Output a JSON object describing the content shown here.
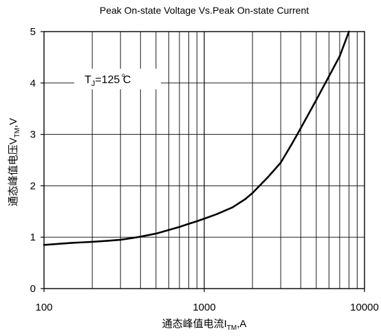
{
  "chart_data": {
    "type": "line",
    "title": "Peak On-state Voltage Vs.Peak On-state Current",
    "xlabel": {
      "main": "通态峰值电流I",
      "sub": "TM",
      "suffix": ",A"
    },
    "ylabel": {
      "main": "通态峰值电压V",
      "sub": "TM",
      "suffix": ",V"
    },
    "xscale": "log",
    "xlim": [
      100,
      10000
    ],
    "ylim": [
      0,
      5
    ],
    "x_ticks": [
      "100",
      "1000",
      "10000"
    ],
    "y_ticks": [
      "0",
      "1",
      "2",
      "3",
      "4",
      "5"
    ],
    "grid": true,
    "annotation": {
      "main": "T",
      "sub": "J",
      "suffix": "=125  C"
    },
    "series": [
      {
        "x": [
          100,
          150,
          200,
          250,
          300,
          350,
          400,
          500,
          600,
          700,
          800,
          900,
          1000,
          1200,
          1500,
          1800,
          2000,
          2500,
          3000,
          3500,
          4000,
          5000,
          6000,
          7000,
          8000
        ],
        "y": [
          0.85,
          0.89,
          0.91,
          0.93,
          0.95,
          0.98,
          1.01,
          1.07,
          1.14,
          1.2,
          1.26,
          1.31,
          1.36,
          1.45,
          1.58,
          1.74,
          1.86,
          2.17,
          2.45,
          2.8,
          3.12,
          3.67,
          4.13,
          4.52,
          5.0
        ]
      }
    ]
  }
}
